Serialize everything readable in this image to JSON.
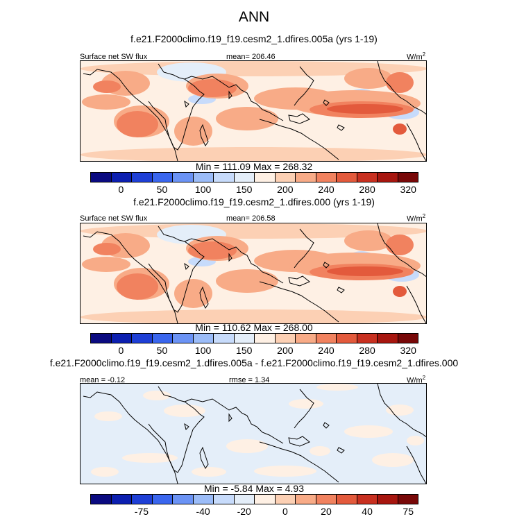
{
  "title": "ANN",
  "colors": {
    "levels": [
      "#0a0a80",
      "#0c1fb0",
      "#1e3fd6",
      "#3a66ee",
      "#6b93f5",
      "#9bbcf8",
      "#c7dbfb",
      "#e4eef9",
      "#fef0e4",
      "#fcd0b4",
      "#f8ab87",
      "#f1825f",
      "#e35a3c",
      "#c83020",
      "#a7160f",
      "#780808"
    ],
    "coast": "#000000"
  },
  "panels": [
    {
      "subtitle": "f.e21.F2000climo.f19_f19.cesm2_1.dfires.005a (yrs 1-19)",
      "left_label": "Surface net SW flux",
      "center_label": "mean= 206.46",
      "units": "W/m",
      "units_sup": "2",
      "minmax": "Min = 111.09 Max = 268.32",
      "ticks": [
        "0",
        "50",
        "100",
        "150",
        "200",
        "240",
        "280",
        "320"
      ],
      "field": "sw"
    },
    {
      "subtitle": "f.e21.F2000climo.f19_f19.cesm2_1.dfires.000 (yrs 1-19)",
      "left_label": "Surface net SW flux",
      "center_label": "mean= 206.58",
      "units": "W/m",
      "units_sup": "2",
      "minmax": "Min = 110.62 Max = 268.00",
      "ticks": [
        "0",
        "50",
        "100",
        "150",
        "200",
        "240",
        "280",
        "320"
      ],
      "field": "sw"
    },
    {
      "subtitle": "f.e21.F2000climo.f19_f19.cesm2_1.dfires.005a - f.e21.F2000climo.f19_f19.cesm2_1.dfires.000",
      "left_label": "mean =  -0.12",
      "center_label": "rmse =  1.34",
      "units": "W/m",
      "units_sup": "2",
      "minmax": "Min =  -5.84 Max =   4.93",
      "ticks": [
        "-75",
        "-40",
        "-20",
        "0",
        "20",
        "40",
        "75"
      ],
      "field": "diff"
    }
  ]
}
